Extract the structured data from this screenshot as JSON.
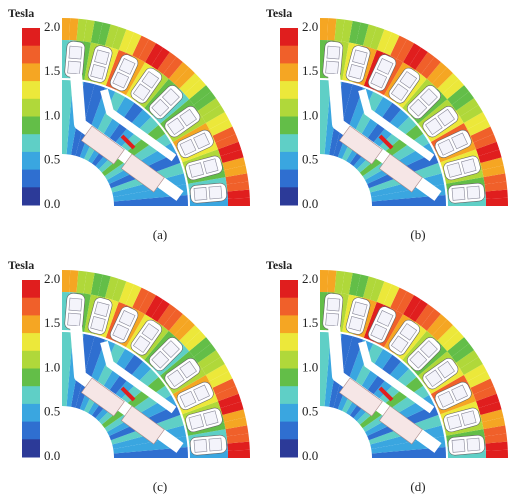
{
  "panels": [
    {
      "label": "(a)",
      "colorbar": {
        "title": "Tesla",
        "ticks": [
          "2.0",
          "1.5",
          "1.0",
          "0.5",
          "0.0"
        ]
      }
    },
    {
      "label": "(b)",
      "colorbar": {
        "title": "Tesla",
        "ticks": [
          "2.0",
          "1.5",
          "1.0",
          "0.5",
          "0.0"
        ]
      }
    },
    {
      "label": "(c)",
      "colorbar": {
        "title": "Tesla",
        "ticks": [
          "2.0",
          "1.5",
          "1.0",
          "0.5",
          "0.0"
        ]
      }
    },
    {
      "label": "(d)",
      "colorbar": {
        "title": "Tesla",
        "ticks": [
          "2.0",
          "1.5",
          "1.0",
          "0.5",
          "0.0"
        ]
      }
    }
  ]
}
